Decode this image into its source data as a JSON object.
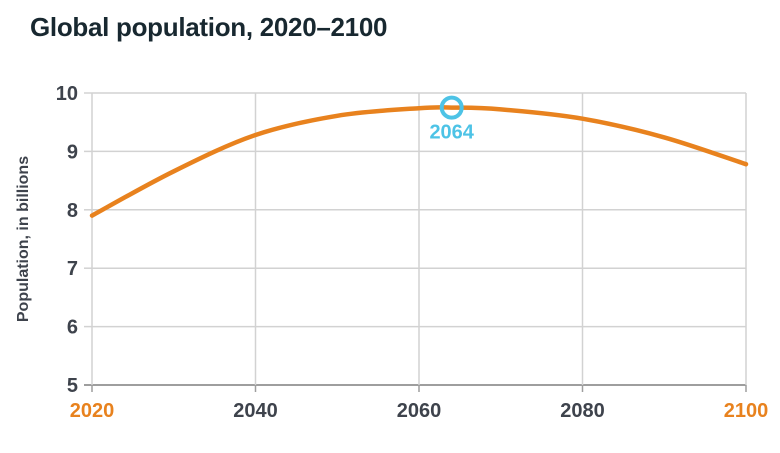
{
  "header": {
    "title": "Global population, 2020–2100"
  },
  "colors": {
    "accent_orange": "#E8821E",
    "accent_cyan": "#4DC3E6",
    "title_text": "#182830",
    "tick_text": "#3E434C",
    "gridline": "#D2D2D2",
    "axis_line": "#9E9E9E"
  },
  "chart_data": {
    "type": "line",
    "title": "Global population, 2020–2100",
    "xlabel": "",
    "ylabel": "Population, in billions",
    "x": [
      2020,
      2030,
      2040,
      2050,
      2060,
      2064,
      2070,
      2080,
      2090,
      2100
    ],
    "series": [
      {
        "name": "Global population, in billions",
        "values": [
          7.9,
          8.66,
          9.28,
          9.61,
          9.74,
          9.75,
          9.72,
          9.56,
          9.24,
          8.78
        ],
        "color": "#E8821E"
      }
    ],
    "xlim": [
      2020,
      2100
    ],
    "ylim": [
      5,
      10
    ],
    "x_ticks": [
      2020,
      2040,
      2060,
      2080,
      2100
    ],
    "highlighted_x_ticks": [
      2020,
      2100
    ],
    "y_ticks": [
      5,
      6,
      7,
      8,
      9,
      10
    ],
    "grid": true,
    "legend_position": "none",
    "annotation": {
      "label": "2064",
      "x": 2064,
      "y": 9.75,
      "marker": "open-circle",
      "color": "#4DC3E6"
    }
  }
}
